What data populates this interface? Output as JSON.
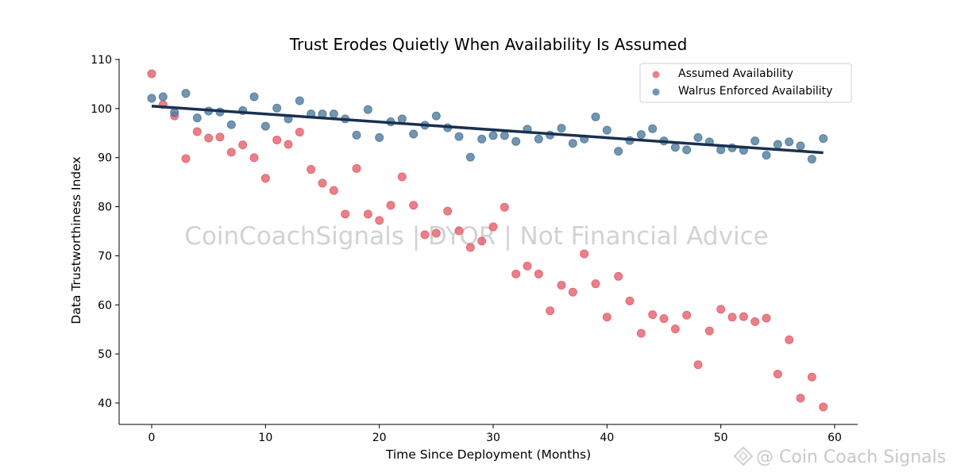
{
  "chart_data": {
    "type": "scatter",
    "title": "Trust Erodes Quietly When Availability Is Assumed",
    "xlabel": "Time Since Deployment (Months)",
    "ylabel": "Data Trustworthiness Index",
    "xlim": [
      -3,
      62
    ],
    "ylim": [
      36,
      110
    ],
    "xticks": [
      0,
      10,
      20,
      30,
      40,
      50,
      60
    ],
    "yticks": [
      40,
      50,
      60,
      70,
      80,
      90,
      100,
      110
    ],
    "grid": false,
    "legend_position": "top-right",
    "series": [
      {
        "name": "Assumed Availability",
        "color": "#e3606b",
        "x": [
          0,
          1,
          2,
          3,
          4,
          5,
          6,
          7,
          8,
          9,
          10,
          11,
          12,
          13,
          14,
          15,
          16,
          17,
          18,
          19,
          20,
          21,
          22,
          23,
          24,
          25,
          26,
          27,
          28,
          29,
          30,
          31,
          32,
          33,
          34,
          35,
          36,
          37,
          38,
          39,
          40,
          41,
          42,
          43,
          44,
          45,
          46,
          47,
          48,
          49,
          50,
          51,
          52,
          53,
          54,
          55,
          56,
          57,
          58,
          59
        ],
        "y": [
          107.1,
          100.8,
          98.5,
          89.8,
          95.3,
          94.0,
          94.2,
          91.1,
          92.6,
          90.0,
          85.8,
          93.6,
          92.7,
          95.2,
          87.6,
          84.8,
          83.3,
          78.5,
          87.8,
          78.5,
          77.2,
          80.3,
          86.1,
          80.3,
          74.3,
          74.6,
          79.1,
          75.1,
          71.7,
          73.0,
          75.9,
          79.9,
          66.3,
          67.9,
          66.3,
          58.8,
          64.0,
          62.6,
          70.4,
          64.3,
          57.5,
          65.8,
          60.8,
          54.2,
          58.0,
          57.2,
          55.1,
          57.9,
          47.8,
          54.7,
          59.1,
          57.5,
          57.6,
          56.6,
          57.3,
          45.9,
          52.9,
          41.0,
          45.3,
          39.2
        ]
      },
      {
        "name": "Walrus Enforced Availability",
        "color": "#4f7a9c",
        "x": [
          0,
          1,
          2,
          3,
          4,
          5,
          6,
          7,
          8,
          9,
          10,
          11,
          12,
          13,
          14,
          15,
          16,
          17,
          18,
          19,
          20,
          21,
          22,
          23,
          24,
          25,
          26,
          27,
          28,
          29,
          30,
          31,
          32,
          33,
          34,
          35,
          36,
          37,
          38,
          39,
          40,
          41,
          42,
          43,
          44,
          45,
          46,
          47,
          48,
          49,
          50,
          51,
          52,
          53,
          54,
          55,
          56,
          57,
          58,
          59
        ],
        "y": [
          102.1,
          102.4,
          99.2,
          103.1,
          98.1,
          99.5,
          99.3,
          96.7,
          99.6,
          102.4,
          96.4,
          100.1,
          97.9,
          101.6,
          98.9,
          98.9,
          98.9,
          97.9,
          94.6,
          99.8,
          94.1,
          97.3,
          97.9,
          94.8,
          96.6,
          98.5,
          96.1,
          94.3,
          90.1,
          93.8,
          94.5,
          94.5,
          93.3,
          95.8,
          93.8,
          94.6,
          96.0,
          92.9,
          93.8,
          98.3,
          95.6,
          91.3,
          93.5,
          94.7,
          95.9,
          93.4,
          92.1,
          91.6,
          94.1,
          93.2,
          91.6,
          92.0,
          91.5,
          93.4,
          90.5,
          92.7,
          93.2,
          92.4,
          89.7,
          93.9
        ]
      }
    ],
    "trendline": {
      "series": "Walrus Enforced Availability",
      "color": "#1a3050",
      "x": [
        0,
        59
      ],
      "y": [
        100.5,
        91.0
      ]
    }
  },
  "watermarks": {
    "center": "CoinCoachSignals | DYOR | Not Financial Advice",
    "corner": "@ Coin Coach Signals"
  }
}
